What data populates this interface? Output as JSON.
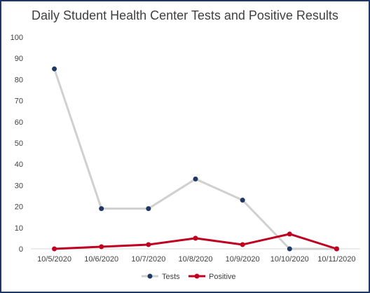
{
  "chart_data": {
    "type": "line",
    "title": "Daily Student Health Center Tests and Positive Results",
    "xlabel": "",
    "ylabel": "",
    "categories": [
      "10/5/2020",
      "10/6/2020",
      "10/7/2020",
      "10/8/2020",
      "10/9/2020",
      "10/10/2020",
      "10/11/2020"
    ],
    "ylim": [
      0,
      100
    ],
    "yticks": [
      0,
      10,
      20,
      30,
      40,
      50,
      60,
      70,
      80,
      90,
      100
    ],
    "grid": false,
    "legend_position": "bottom",
    "series": [
      {
        "name": "Tests",
        "values": [
          85,
          19,
          19,
          33,
          23,
          0,
          0
        ],
        "line_color": "#d0d0d0",
        "marker_color": "#1f3864"
      },
      {
        "name": "Positive",
        "values": [
          0,
          1,
          2,
          5,
          2,
          7,
          0
        ],
        "line_color": "#c00020",
        "marker_color": "#c00020"
      }
    ]
  }
}
